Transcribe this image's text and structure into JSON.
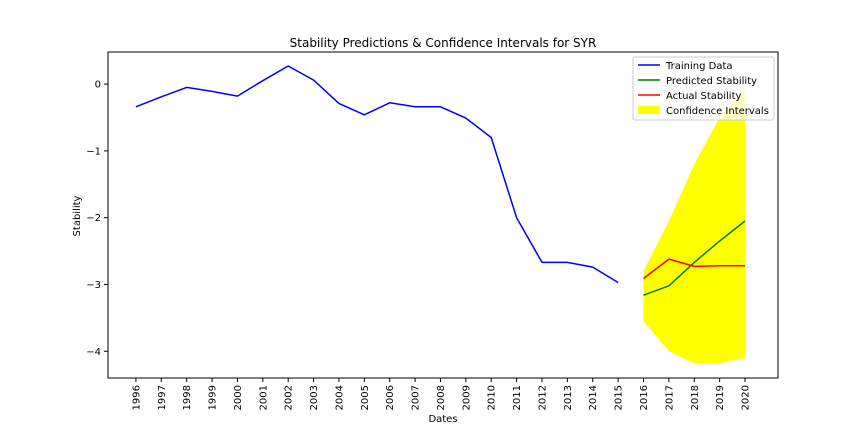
{
  "chart_data": {
    "type": "line",
    "title": "Stability Predictions & Confidence Intervals for SYR",
    "xlabel": "Dates",
    "ylabel": "Stability",
    "categories": [
      "1996",
      "1997",
      "1998",
      "1999",
      "2000",
      "2001",
      "2002",
      "2003",
      "2004",
      "2005",
      "2006",
      "2007",
      "2008",
      "2009",
      "2010",
      "2011",
      "2012",
      "2013",
      "2014",
      "2015",
      "2016",
      "2017",
      "2018",
      "2019",
      "2020"
    ],
    "xlim": [
      1994.9,
      2021.3
    ],
    "ylim": [
      -4.4,
      0.48
    ],
    "yticks": [
      0,
      -1,
      -2,
      -3,
      -4
    ],
    "yticklabels": [
      "0",
      "−1",
      "−2",
      "−3",
      "−4"
    ],
    "grid": false,
    "legend_position": "top-right",
    "series": [
      {
        "name": "Training Data",
        "color": "#0000ff",
        "x": [
          1996,
          1997,
          1998,
          1999,
          2000,
          2001,
          2002,
          2003,
          2004,
          2005,
          2006,
          2007,
          2008,
          2009,
          2010,
          2011,
          2012,
          2013,
          2014,
          2015
        ],
        "values": [
          -0.34,
          -0.19,
          -0.05,
          -0.11,
          -0.18,
          0.05,
          0.27,
          0.06,
          -0.29,
          -0.46,
          -0.28,
          -0.34,
          -0.34,
          -0.51,
          -0.8,
          -2.0,
          -2.67,
          -2.67,
          -2.74,
          -2.97
        ]
      },
      {
        "name": "Predicted Stability",
        "color": "#008000",
        "x": [
          2016,
          2017,
          2018,
          2019,
          2020
        ],
        "values": [
          -3.16,
          -3.02,
          -2.67,
          -2.35,
          -2.05
        ]
      },
      {
        "name": "Actual Stability",
        "color": "#ff0000",
        "x": [
          2016,
          2017,
          2018,
          2019,
          2020
        ],
        "values": [
          -2.91,
          -2.62,
          -2.73,
          -2.72,
          -2.72
        ]
      }
    ],
    "confidence_interval": {
      "name": "Confidence Intervals",
      "color": "#ffff00",
      "x": [
        2016,
        2017,
        2018,
        2019,
        2020
      ],
      "upper": [
        -2.8,
        -2.05,
        -1.2,
        -0.5,
        -0.05
      ],
      "lower": [
        -3.55,
        -4.0,
        -4.18,
        -4.18,
        -4.1
      ]
    }
  }
}
